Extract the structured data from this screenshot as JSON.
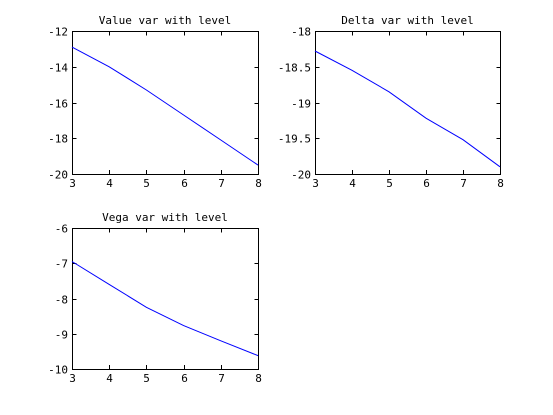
{
  "chart_data": [
    {
      "type": "line",
      "title": "Value var with level",
      "xlabel": "",
      "ylabel": "",
      "xlim": [
        3,
        8
      ],
      "ylim": [
        -20,
        -12
      ],
      "xticks": [
        3,
        4,
        5,
        6,
        7,
        8
      ],
      "yticks": [
        -20,
        -18,
        -16,
        -14,
        -12
      ],
      "grid": false,
      "series": [
        {
          "color": "#0000ff",
          "x": [
            3,
            4,
            5,
            6,
            7,
            8
          ],
          "y": [
            -12.9,
            -14.0,
            -15.3,
            -16.7,
            -18.1,
            -19.5
          ]
        }
      ]
    },
    {
      "type": "line",
      "title": "Delta var with level",
      "xlabel": "",
      "ylabel": "",
      "xlim": [
        3,
        8
      ],
      "ylim": [
        -20,
        -18
      ],
      "xticks": [
        3,
        4,
        5,
        6,
        7,
        8
      ],
      "yticks": [
        -20,
        -19.5,
        -19,
        -18.5,
        -18
      ],
      "grid": false,
      "series": [
        {
          "color": "#0000ff",
          "x": [
            3,
            4,
            5,
            6,
            7,
            8
          ],
          "y": [
            -18.28,
            -18.55,
            -18.85,
            -19.22,
            -19.52,
            -19.9
          ]
        }
      ]
    },
    {
      "type": "line",
      "title": "Vega var with level",
      "xlabel": "",
      "ylabel": "",
      "xlim": [
        3,
        8
      ],
      "ylim": [
        -10,
        -6
      ],
      "xticks": [
        3,
        4,
        5,
        6,
        7,
        8
      ],
      "yticks": [
        -10,
        -9,
        -8,
        -7,
        -6
      ],
      "grid": false,
      "series": [
        {
          "color": "#0000ff",
          "x": [
            3,
            4,
            5,
            6,
            7,
            8
          ],
          "y": [
            -6.95,
            -7.6,
            -8.25,
            -8.77,
            -9.2,
            -9.62
          ]
        }
      ]
    }
  ]
}
